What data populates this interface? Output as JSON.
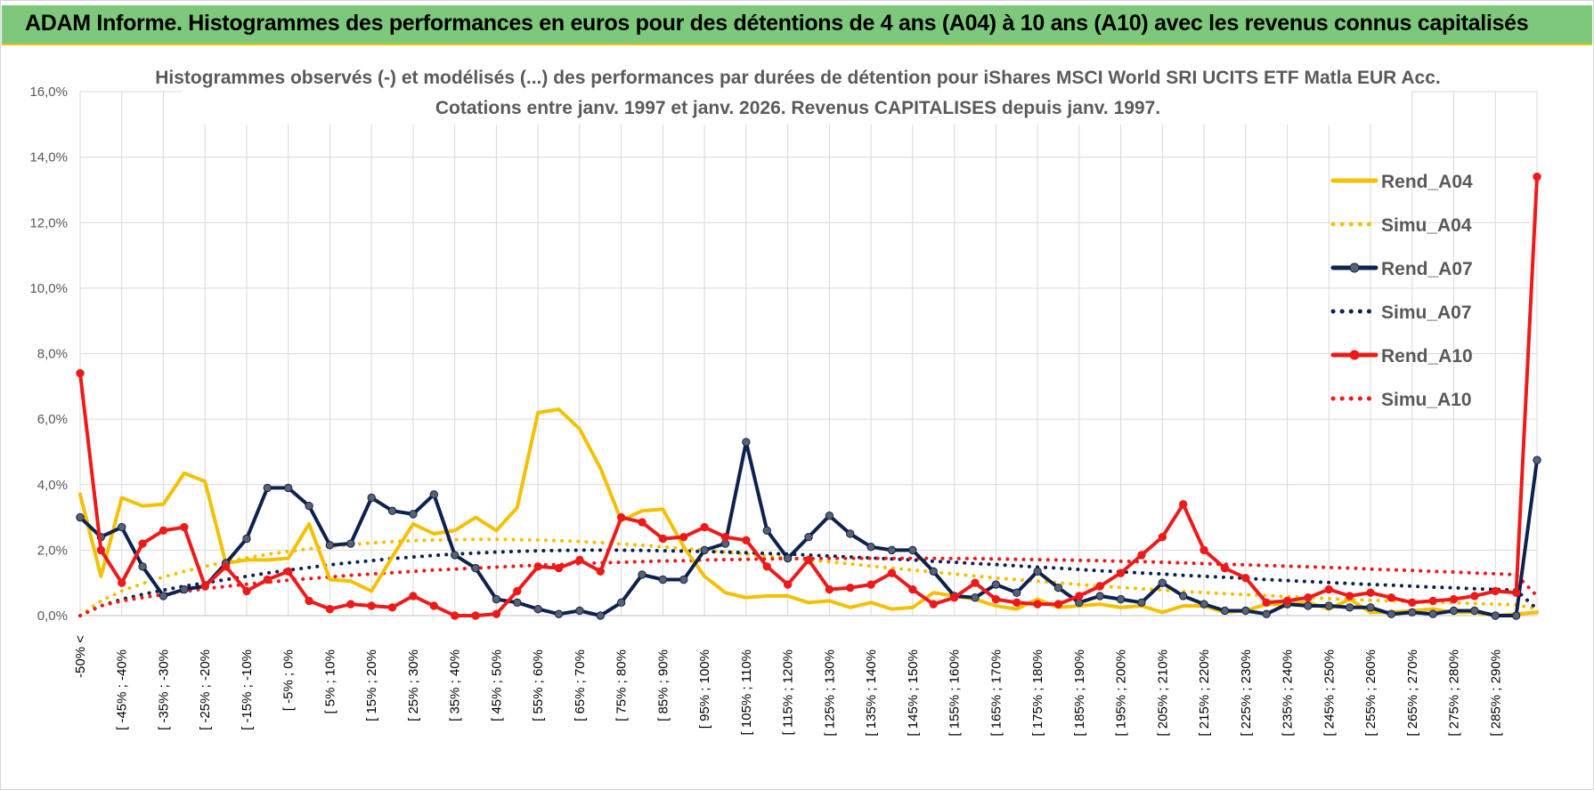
{
  "header": {
    "title": "ADAM Informe. Histogrammes des performances en euros pour des détentions de 4 ans (A04) à 10 ans (A10) avec les revenus connus capitalisés"
  },
  "colors": {
    "header_bg": "#7dc87b",
    "A04": "#f5c000",
    "A07": "#0e2250",
    "A10": "#ee1a1a",
    "grid": "#d9d9d9"
  },
  "chart_data": {
    "type": "line",
    "title": [
      "Histogrammes observés (-) et modélisés (...) des performances par durées de détention pour iShares MSCI World SRI UCITS ETF Matla EUR Acc.",
      "Cotations entre janv. 1997 et janv. 2026. Revenus CAPITALISES depuis janv. 1997."
    ],
    "ylim": [
      0,
      16
    ],
    "yticks": [
      "0,0%",
      "2,0%",
      "4,0%",
      "6,0%",
      "8,0%",
      "10,0%",
      "12,0%",
      "14,0%",
      "16,0%"
    ],
    "x_count": 71,
    "x_tick_labels": [
      "-50% <",
      "[ -45% ; -40%",
      "[ -35% ; -30%",
      "[ -25% ; -20%",
      "[ -15% ; -10%",
      "[ -5% ; 0%",
      "[ 5% ; 10%",
      "[ 15% ; 20%",
      "[ 25% ; 30%",
      "[ 35% ; 40%",
      "[ 45% ; 50%",
      "[ 55% ; 60%",
      "[ 65% ; 70%",
      "[ 75% ; 80%",
      "[ 85% ; 90%",
      "[ 95% ; 100%",
      "[ 105% ; 110%",
      "[ 115% ; 120%",
      "[ 125% ; 130%",
      "[ 135% ; 140%",
      "[ 145% ; 150%",
      "[ 155% ; 160%",
      "[ 165% ; 170%",
      "[ 175% ; 180%",
      "[ 185% ; 190%",
      "[ 195% ; 200%",
      "[ 205% ; 210%",
      "[ 215% ; 220%",
      "[ 225% ; 230%",
      "[ 235% ; 240%",
      "[ 245% ; 250%",
      "[ 255% ; 260%",
      "[ 265% ; 270%",
      "[ 275% ; 280%",
      "[ 285% ; 290%"
    ],
    "grid": true,
    "legend_position": "right",
    "series": [
      {
        "name": "Rend_A04",
        "style": "solid",
        "color": "#f5c000",
        "markers": false,
        "values": [
          3.7,
          1.2,
          3.6,
          3.35,
          3.4,
          4.35,
          4.1,
          1.6,
          1.7,
          1.7,
          1.75,
          2.8,
          1.1,
          1.05,
          0.75,
          1.8,
          2.8,
          2.5,
          2.6,
          3.0,
          2.6,
          3.3,
          6.2,
          6.3,
          5.7,
          4.5,
          2.9,
          3.2,
          3.25,
          2.1,
          1.2,
          0.7,
          0.55,
          0.6,
          0.6,
          0.4,
          0.45,
          0.25,
          0.4,
          0.2,
          0.25,
          0.7,
          0.6,
          0.5,
          0.3,
          0.2,
          0.5,
          0.25,
          0.3,
          0.35,
          0.25,
          0.3,
          0.1,
          0.3,
          0.3,
          0.1,
          0.15,
          0.35,
          0.35,
          0.4,
          0.2,
          0.5,
          0.1,
          0.1,
          0.15,
          0.2,
          0.1,
          0.1,
          0.0,
          0.05,
          0.1
        ]
      },
      {
        "name": "Simu_A04",
        "style": "dotted",
        "color": "#f5c000",
        "markers": false,
        "values": [
          0.0,
          0.45,
          0.75,
          0.98,
          1.18,
          1.35,
          1.5,
          1.64,
          1.76,
          1.87,
          1.96,
          2.04,
          2.11,
          2.17,
          2.22,
          2.26,
          2.29,
          2.31,
          2.32,
          2.33,
          2.33,
          2.32,
          2.31,
          2.29,
          2.26,
          2.23,
          2.19,
          2.15,
          2.1,
          2.05,
          2.0,
          1.94,
          1.88,
          1.82,
          1.76,
          1.7,
          1.64,
          1.58,
          1.51,
          1.45,
          1.39,
          1.33,
          1.27,
          1.21,
          1.15,
          1.1,
          1.05,
          1.0,
          0.95,
          0.9,
          0.86,
          0.82,
          0.78,
          0.74,
          0.7,
          0.67,
          0.64,
          0.61,
          0.58,
          0.55,
          0.52,
          0.49,
          0.47,
          0.45,
          0.43,
          0.41,
          0.39,
          0.37,
          0.35,
          0.33,
          0.2
        ]
      },
      {
        "name": "Rend_A07",
        "style": "solid",
        "color": "#0e2250",
        "markers": true,
        "values": [
          3.0,
          2.4,
          2.7,
          1.5,
          0.6,
          0.8,
          0.9,
          1.6,
          2.35,
          3.9,
          3.9,
          3.35,
          2.15,
          2.2,
          3.6,
          3.2,
          3.1,
          3.7,
          1.85,
          1.45,
          0.5,
          0.4,
          0.2,
          0.05,
          0.15,
          0.0,
          0.4,
          1.25,
          1.1,
          1.1,
          2.0,
          2.2,
          5.3,
          2.6,
          1.75,
          2.4,
          3.05,
          2.5,
          2.1,
          2.0,
          2.0,
          1.35,
          0.6,
          0.55,
          0.95,
          0.7,
          1.35,
          0.85,
          0.4,
          0.6,
          0.5,
          0.4,
          1.0,
          0.6,
          0.35,
          0.15,
          0.15,
          0.05,
          0.35,
          0.3,
          0.3,
          0.25,
          0.25,
          0.05,
          0.1,
          0.05,
          0.15,
          0.15,
          0.0,
          0.0,
          4.75
        ]
      },
      {
        "name": "Simu_A07",
        "style": "dotted",
        "color": "#0e2250",
        "markers": false,
        "values": [
          0.0,
          0.3,
          0.5,
          0.65,
          0.78,
          0.9,
          1.0,
          1.1,
          1.2,
          1.3,
          1.39,
          1.47,
          1.55,
          1.62,
          1.68,
          1.74,
          1.79,
          1.84,
          1.88,
          1.91,
          1.94,
          1.96,
          1.98,
          1.99,
          2.0,
          2.0,
          2.0,
          1.99,
          1.98,
          1.97,
          1.96,
          1.94,
          1.92,
          1.9,
          1.88,
          1.85,
          1.82,
          1.79,
          1.76,
          1.73,
          1.7,
          1.66,
          1.63,
          1.59,
          1.56,
          1.52,
          1.48,
          1.45,
          1.41,
          1.37,
          1.34,
          1.3,
          1.27,
          1.23,
          1.2,
          1.17,
          1.14,
          1.1,
          1.07,
          1.04,
          1.01,
          0.98,
          0.95,
          0.93,
          0.9,
          0.87,
          0.85,
          0.82,
          0.8,
          0.78,
          0.2
        ]
      },
      {
        "name": "Rend_A10",
        "style": "solid",
        "color": "#ee1a1a",
        "markers": true,
        "values": [
          7.4,
          2.0,
          1.0,
          2.2,
          2.6,
          2.7,
          0.9,
          1.5,
          0.75,
          1.1,
          1.35,
          0.45,
          0.2,
          0.35,
          0.3,
          0.25,
          0.6,
          0.3,
          0.0,
          0.0,
          0.05,
          0.75,
          1.5,
          1.45,
          1.7,
          1.35,
          3.0,
          2.85,
          2.35,
          2.4,
          2.7,
          2.4,
          2.3,
          1.5,
          0.95,
          1.7,
          0.8,
          0.85,
          0.95,
          1.3,
          0.8,
          0.35,
          0.55,
          1.0,
          0.5,
          0.4,
          0.35,
          0.35,
          0.6,
          0.9,
          1.3,
          1.85,
          2.4,
          3.4,
          2.0,
          1.45,
          1.15,
          0.4,
          0.45,
          0.55,
          0.8,
          0.6,
          0.7,
          0.55,
          0.4,
          0.45,
          0.5,
          0.6,
          0.75,
          0.7,
          13.4
        ]
      },
      {
        "name": "Simu_A10",
        "style": "dotted",
        "color": "#ee1a1a",
        "markers": false,
        "values": [
          0.0,
          0.3,
          0.45,
          0.55,
          0.65,
          0.74,
          0.82,
          0.89,
          0.96,
          1.02,
          1.08,
          1.13,
          1.18,
          1.23,
          1.27,
          1.31,
          1.35,
          1.39,
          1.42,
          1.45,
          1.48,
          1.51,
          1.54,
          1.56,
          1.59,
          1.61,
          1.63,
          1.65,
          1.67,
          1.68,
          1.7,
          1.71,
          1.72,
          1.73,
          1.74,
          1.74,
          1.75,
          1.75,
          1.75,
          1.75,
          1.75,
          1.75,
          1.74,
          1.74,
          1.73,
          1.72,
          1.71,
          1.7,
          1.69,
          1.68,
          1.66,
          1.65,
          1.63,
          1.61,
          1.59,
          1.57,
          1.55,
          1.53,
          1.51,
          1.49,
          1.47,
          1.45,
          1.42,
          1.4,
          1.38,
          1.35,
          1.33,
          1.3,
          1.28,
          1.25,
          0.6
        ]
      }
    ]
  }
}
